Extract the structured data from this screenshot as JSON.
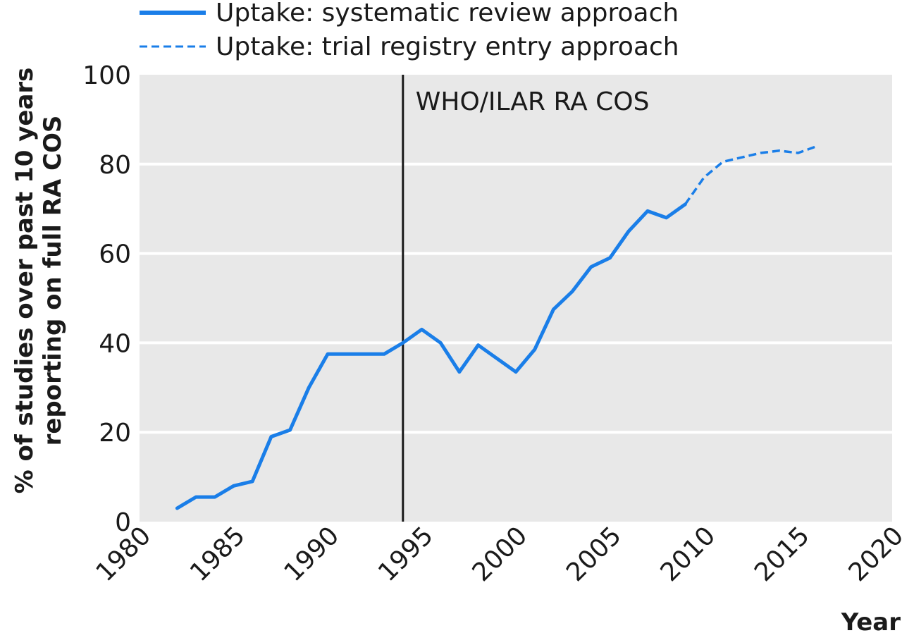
{
  "chart_data": {
    "type": "line",
    "title": "",
    "xlabel": "Year",
    "ylabel": [
      "% of studies over past 10 years",
      "reporting on full RA COS"
    ],
    "xlim": [
      1980,
      2020
    ],
    "ylim": [
      0,
      100
    ],
    "x_ticks": [
      1980,
      1985,
      1990,
      1995,
      2000,
      2005,
      2010,
      2015,
      2020
    ],
    "y_ticks": [
      0,
      20,
      40,
      60,
      80,
      100
    ],
    "grid": "horizontal",
    "legend_position": "top-left",
    "background_color": "#e8e8e8",
    "grid_color": "#ffffff",
    "series": [
      {
        "name": "Uptake: systematic review approach",
        "color": "#1a7ee8",
        "style": "solid",
        "x": [
          1982,
          1983,
          1984,
          1985,
          1986,
          1987,
          1988,
          1989,
          1990,
          1991,
          1992,
          1993,
          1994,
          1995,
          1996,
          1997,
          1998,
          1999,
          2000,
          2001,
          2002,
          2003,
          2004,
          2005,
          2006,
          2007,
          2008,
          2009
        ],
        "y": [
          3,
          5.5,
          5.5,
          8,
          9,
          19,
          20.5,
          30,
          37.5,
          37.5,
          37.5,
          37.5,
          40,
          43,
          40,
          33.5,
          39.5,
          36.5,
          33.5,
          38.5,
          47.5,
          51.5,
          57,
          59,
          65,
          69.5,
          68,
          71
        ]
      },
      {
        "name": "Uptake: trial registry entry approach",
        "color": "#1a7ee8",
        "style": "dashed",
        "x": [
          2009,
          2010,
          2011,
          2012,
          2013,
          2014,
          2015,
          2016
        ],
        "y": [
          71,
          77,
          80.5,
          81.5,
          82.5,
          83,
          82.5,
          84
        ]
      }
    ],
    "annotations": [
      {
        "type": "vline",
        "x": 1994,
        "label": "WHO/ILAR RA COS",
        "color": "#1a1a1a"
      }
    ]
  }
}
